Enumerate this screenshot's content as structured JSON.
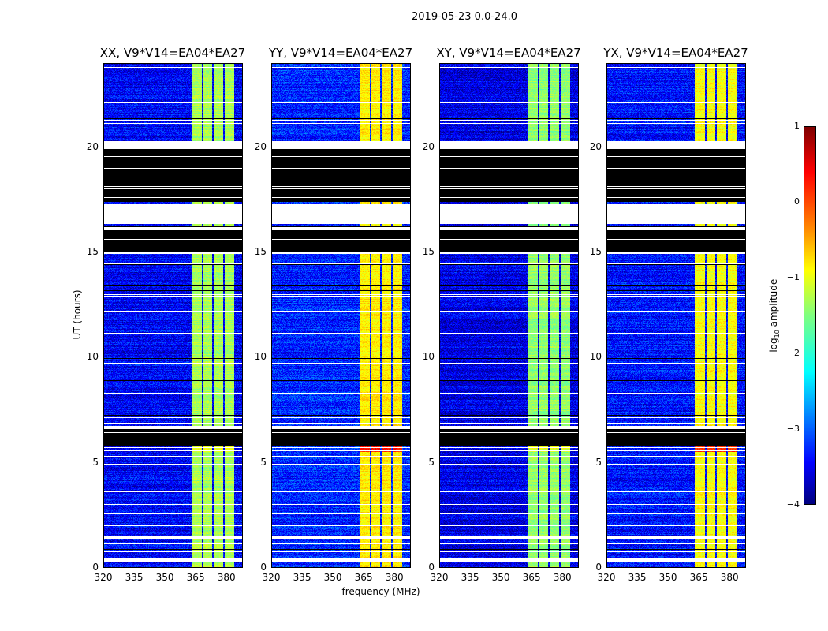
{
  "chart_data": {
    "type": "heatmap",
    "suptitle": "2019-05-23 0.0-24.0",
    "xlabel": "frequency (MHz)",
    "ylabel": "UT (hours)",
    "xlim": [
      320,
      388
    ],
    "ylim": [
      0,
      24
    ],
    "xticks": [
      320,
      335,
      350,
      365,
      380
    ],
    "yticks": [
      0,
      5,
      10,
      15,
      20
    ],
    "colormap": "jet",
    "colorbar": {
      "label_prefix": "log",
      "label_sub": "10",
      "label_suffix": " amplitude",
      "range": [
        -4,
        1
      ],
      "ticks": [
        1,
        0,
        -1,
        -2,
        -3,
        -4
      ]
    },
    "panels": [
      {
        "title": "XX, V9*V14=EA04*EA27",
        "background_level": -3.4,
        "rfi_level": -1.3,
        "rfi_peak_level": -0.9
      },
      {
        "title": "YY, V9*V14=EA04*EA27",
        "background_level": -3.2,
        "rfi_level": -0.8,
        "rfi_peak_level": 0.2
      },
      {
        "title": "XY, V9*V14=EA04*EA27",
        "background_level": -3.5,
        "rfi_level": -1.4,
        "rfi_peak_level": -1.0
      },
      {
        "title": "YX, V9*V14=EA04*EA27",
        "background_level": -3.3,
        "rfi_level": -0.9,
        "rfi_peak_level": 0.1
      }
    ],
    "rfi_band_mhz": [
      363,
      384
    ],
    "rfi_gaps_mhz": [
      [
        368.3,
        369.0
      ],
      [
        373.3,
        374.0
      ],
      [
        378.8,
        379.5
      ]
    ],
    "rfi_peak_hours": [
      5.5,
      5.8
    ],
    "flagged_blank_hours": [
      [
        19.95,
        20.3
      ],
      [
        17.3,
        16.35
      ],
      [
        15.05,
        14.95
      ],
      [
        0.25,
        0.45
      ],
      [
        1.35,
        1.5
      ],
      [
        6.6,
        6.75
      ]
    ],
    "flagged_black_hours": [
      [
        17.4,
        19.95
      ],
      [
        15.05,
        16.3
      ],
      [
        5.75,
        6.6
      ]
    ]
  }
}
